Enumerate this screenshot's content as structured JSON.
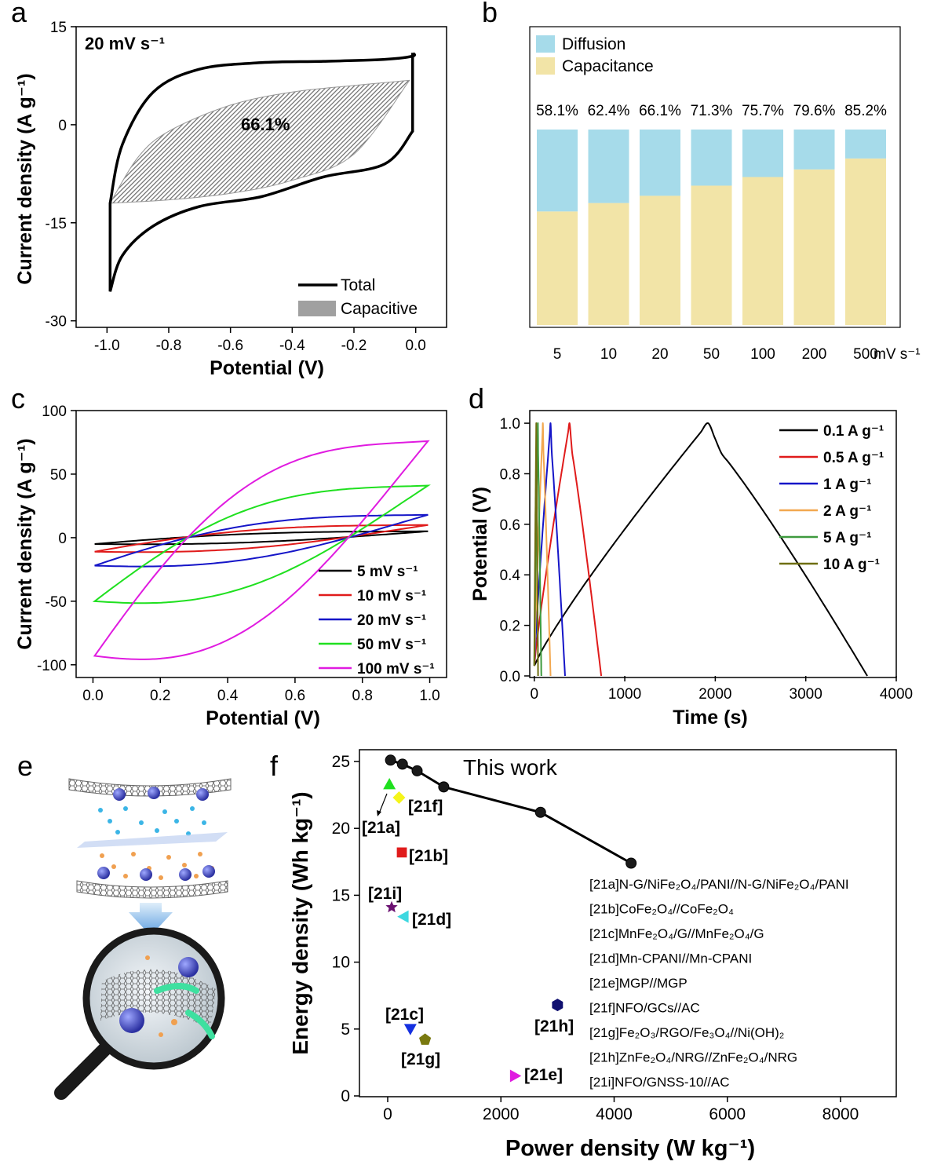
{
  "colors": {
    "diffusion": "#a6dbea",
    "capacitance": "#f2e4a7",
    "capacitive_fill": "#a0a0a0",
    "series": [
      "#000000",
      "#e01b1b",
      "#1515c8",
      "#1fe01f",
      "#e01be0",
      "#f2a850",
      "#3e9a3e",
      "#6e6e10"
    ]
  },
  "panel_labels": [
    "a",
    "b",
    "c",
    "d",
    "e",
    "f"
  ],
  "chart_data": [
    {
      "panel": "a",
      "type": "line",
      "xlabel": "Potential (V)",
      "ylabel": "Current density (A g⁻¹)",
      "xlim": [
        -1.1,
        0.1
      ],
      "ylim": [
        -31,
        15
      ],
      "xticks": [
        "-1.0",
        "-0.8",
        "-0.6",
        "-0.4",
        "-0.2",
        "0.0"
      ],
      "yticks": [
        "15",
        "0",
        "-15",
        "-30"
      ],
      "annotation_rate": "20 mV s⁻¹",
      "annotation_percent": "66.1%",
      "legend": [
        "Total",
        "Capacitive"
      ],
      "total_upper": [
        [
          -0.99,
          -12
        ],
        [
          -0.95,
          -3
        ],
        [
          -0.85,
          5
        ],
        [
          -0.7,
          8.5
        ],
        [
          -0.5,
          9.5
        ],
        [
          -0.3,
          9.7
        ],
        [
          -0.1,
          10
        ],
        [
          -0.01,
          10.5
        ],
        [
          -0.01,
          11
        ]
      ],
      "total_lower": [
        [
          -0.99,
          -25.5
        ],
        [
          -0.95,
          -20
        ],
        [
          -0.85,
          -15.5
        ],
        [
          -0.7,
          -12.5
        ],
        [
          -0.5,
          -11
        ],
        [
          -0.3,
          -8
        ],
        [
          -0.1,
          -6
        ],
        [
          -0.01,
          -1
        ]
      ],
      "capacitive_upper": [
        [
          -0.99,
          -12
        ],
        [
          -0.9,
          -5
        ],
        [
          -0.8,
          -1
        ],
        [
          -0.6,
          3
        ],
        [
          -0.4,
          5
        ],
        [
          -0.2,
          6
        ],
        [
          -0.02,
          6.8
        ]
      ],
      "capacitive_lower": [
        [
          -0.99,
          -12
        ],
        [
          -0.8,
          -11.5
        ],
        [
          -0.6,
          -10.5
        ],
        [
          -0.4,
          -8.5
        ],
        [
          -0.2,
          -4.5
        ],
        [
          -0.02,
          6.8
        ]
      ]
    },
    {
      "panel": "b",
      "type": "bar",
      "categories": [
        "5",
        "10",
        "20",
        "50",
        "100",
        "200",
        "500"
      ],
      "xunit": "mV s⁻¹",
      "series": [
        {
          "name": "Capacitance",
          "values": [
            58.1,
            62.4,
            66.1,
            71.3,
            75.7,
            79.6,
            85.2
          ]
        },
        {
          "name": "Diffusion",
          "values": [
            41.9,
            37.6,
            33.9,
            28.7,
            24.3,
            20.4,
            14.8
          ]
        }
      ],
      "labels": [
        "58.1%",
        "62.4%",
        "66.1%",
        "71.3%",
        "75.7%",
        "79.6%",
        "85.2%"
      ],
      "ylim": [
        0,
        100
      ]
    },
    {
      "panel": "c",
      "type": "line",
      "xlabel": "Potential (V)",
      "ylabel": "Current density (A g⁻¹)",
      "xlim": [
        -0.05,
        1.05
      ],
      "ylim": [
        -110,
        100
      ],
      "xticks": [
        "0.0",
        "0.2",
        "0.4",
        "0.6",
        "0.8",
        "1.0"
      ],
      "yticks": [
        "100",
        "50",
        "0",
        "-50",
        "-100"
      ],
      "series": [
        {
          "name": "5 mV s⁻¹",
          "min": -5,
          "max": 5
        },
        {
          "name": "10 mV s⁻¹",
          "min": -11,
          "max": 10
        },
        {
          "name": "20 mV s⁻¹",
          "min": -22,
          "max": 18
        },
        {
          "name": "50 mV s⁻¹",
          "min": -50,
          "max": 41
        },
        {
          "name": "100 mV s⁻¹",
          "min": -93,
          "max": 76
        }
      ]
    },
    {
      "panel": "d",
      "type": "line",
      "xlabel": "Time (s)",
      "ylabel": "Potential (V)",
      "xlim": [
        -50,
        4000
      ],
      "ylim": [
        0,
        1.05
      ],
      "xticks": [
        "0",
        "1000",
        "2000",
        "3000",
        "4000"
      ],
      "yticks": [
        "0.0",
        "0.2",
        "0.4",
        "0.6",
        "0.8",
        "1.0"
      ],
      "series": [
        {
          "name": "0.1 A g⁻¹",
          "t_peak": 1920,
          "t_end": 3680
        },
        {
          "name": "0.5 A g⁻¹",
          "t_peak": 390,
          "t_end": 740
        },
        {
          "name": "1 A g⁻¹",
          "t_peak": 180,
          "t_end": 340
        },
        {
          "name": "2 A g⁻¹",
          "t_peak": 95,
          "t_end": 180
        },
        {
          "name": "5 A g⁻¹",
          "t_peak": 40,
          "t_end": 78
        },
        {
          "name": "10 A g⁻¹",
          "t_peak": 22,
          "t_end": 42
        }
      ]
    },
    {
      "panel": "f",
      "type": "scatter",
      "xlabel": "Power density (W kg⁻¹)",
      "ylabel": "Energy density (Wh kg⁻¹)",
      "xlim": [
        -500,
        9000
      ],
      "ylim": [
        0,
        26
      ],
      "xticks": [
        "0",
        "2000",
        "4000",
        "6000",
        "8000"
      ],
      "yticks": [
        "0",
        "5",
        "10",
        "15",
        "20",
        "25"
      ],
      "this_work_label": "This work",
      "this_work": [
        [
          50,
          25.1
        ],
        [
          260,
          24.8
        ],
        [
          520,
          24.3
        ],
        [
          990,
          23.1
        ],
        [
          2700,
          21.2
        ],
        [
          4300,
          17.4
        ]
      ],
      "references": [
        {
          "label": "[21a]",
          "x": 30,
          "y": 23.3,
          "color": "#1fe01f",
          "marker": "triangle-up"
        },
        {
          "label": "[21f]",
          "x": 200,
          "y": 22.3,
          "color": "#f5f51a",
          "marker": "diamond"
        },
        {
          "label": "[21b]",
          "x": 250,
          "y": 18.2,
          "color": "#e01b1b",
          "marker": "square"
        },
        {
          "label": "[21i]",
          "x": 70,
          "y": 14.1,
          "color": "#6a1070",
          "marker": "star"
        },
        {
          "label": "[21d]",
          "x": 280,
          "y": 13.4,
          "color": "#3dd8e0",
          "marker": "triangle-left"
        },
        {
          "label": "[21h]",
          "x": 3000,
          "y": 6.8,
          "color": "#101070",
          "marker": "hexagon"
        },
        {
          "label": "[21c]",
          "x": 400,
          "y": 5.0,
          "color": "#1530e0",
          "marker": "triangle-down"
        },
        {
          "label": "[21g]",
          "x": 660,
          "y": 4.2,
          "color": "#7a7a10",
          "marker": "pentagon"
        },
        {
          "label": "[21e]",
          "x": 2250,
          "y": 1.5,
          "color": "#e01be0",
          "marker": "triangle-right"
        }
      ],
      "reference_list": [
        "[21a]N-G/NiFe₂O₄/PANI//N-G/NiFe₂O₄/PANI",
        "[21b]CoFe₂O₄//CoFe₂O₄",
        "[21c]MnFe₂O₄/G//MnFe₂O₄/G",
        "[21d]Mn-CPANI//Mn-CPANI",
        "[21e]MGP//MGP",
        "[21f]NFO/GCs//AC",
        "[21g]Fe₂O₃/RGO/Fe₃O₄//Ni(OH)₂",
        "[21h]ZnFe₂O₄/NRG//ZnFe₂O₄/NRG",
        "[21i]NFO/GNSS-10//AC"
      ]
    }
  ]
}
